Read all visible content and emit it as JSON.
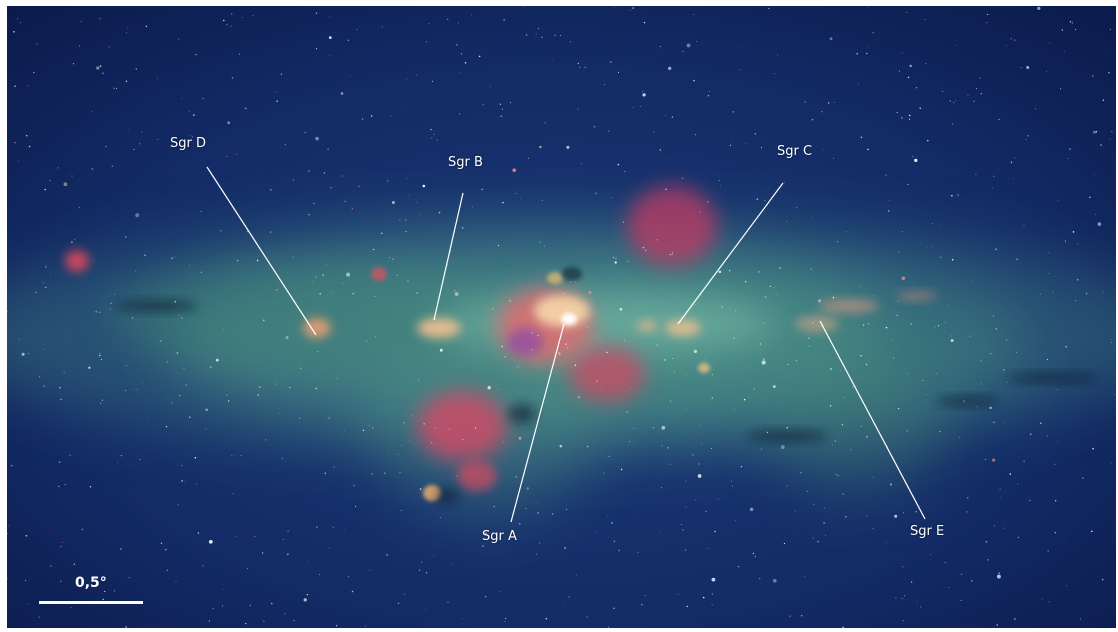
{
  "labels": {
    "sgr_d": "Sgr D",
    "sgr_b": "Sgr B",
    "sgr_c": "Sgr C",
    "sgr_a": "Sgr A",
    "sgr_e": "Sgr E"
  },
  "scale_bar": {
    "label": "0,5°"
  },
  "colors": {
    "sky_background": "#0e1f52",
    "dust_glow": "#5fa88a",
    "emission_red": "#e0455a",
    "label_white": "#ffffff"
  }
}
